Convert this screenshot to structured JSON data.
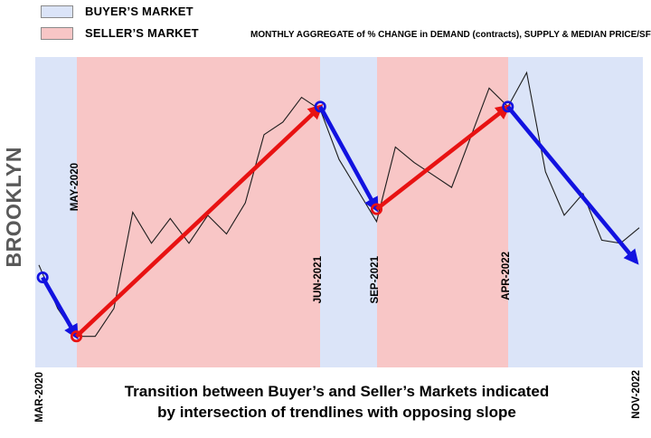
{
  "legend": {
    "items": [
      {
        "label": "BUYER’S MARKET",
        "market": "buyer",
        "color": "#dbe4f8"
      },
      {
        "label": "SELLER’S MARKET",
        "market": "seller",
        "color": "#f8c6c6"
      }
    ]
  },
  "subtitle": "MONTHLY AGGREGATE of % CHANGE in DEMAND (contracts), SUPPLY & MEDIAN PRICE/SF",
  "region_title": "BROOKLYN",
  "caption": {
    "line1": "Transition between Buyer’s and Seller’s Markets indicated",
    "line2": "by intersection of trendlines with opposing slope"
  },
  "chart_data": {
    "type": "line",
    "title": "Brooklyn buyer/seller market transitions",
    "x_axis": {
      "unit": "month",
      "n_points": 33,
      "start_label": "MAR-2020",
      "end_label": "NOV-2022"
    },
    "y_axis": {
      "label": "monthly aggregate of % change (normalized index, no visible axis)",
      "ylim": [
        0,
        100
      ],
      "ticks_visible": false
    },
    "grid": false,
    "legend_position": "top-left",
    "series": [
      {
        "name": "Monthly aggregate of % change in demand (contracts), supply & median price/SF",
        "color": "#1c1c1c",
        "values": [
          33,
          19,
          10,
          10,
          19,
          50,
          40,
          48,
          40,
          49,
          43,
          53,
          75,
          79,
          87,
          83,
          67,
          57,
          47,
          71,
          66,
          62,
          58,
          74,
          90,
          84,
          95,
          63,
          49,
          56,
          41,
          40,
          45
        ]
      }
    ],
    "market_colors": {
      "buyer": "#dbe4f8",
      "seller": "#f8c6c6"
    },
    "market_regions": [
      {
        "market": "buyer",
        "from_month": 0,
        "to_month": 2
      },
      {
        "market": "seller",
        "from_month": 2,
        "to_month": 15
      },
      {
        "market": "buyer",
        "from_month": 15,
        "to_month": 18
      },
      {
        "market": "seller",
        "from_month": 18,
        "to_month": 25
      },
      {
        "market": "buyer",
        "from_month": 25,
        "to_month": 32
      }
    ],
    "boundary_labels": [
      {
        "label": "MAY-2020",
        "month": 2
      },
      {
        "label": "JUN-2021",
        "month": 15
      },
      {
        "label": "SEP-2021",
        "month": 18
      },
      {
        "label": "APR-2022",
        "month": 25
      }
    ],
    "timeline": {
      "start": {
        "label": "MAR-2020",
        "month": 0
      },
      "end": {
        "label": "NOV-2022",
        "month": 32
      }
    },
    "trend_colors": {
      "buyer": "#1212e0",
      "seller": "#e81212"
    },
    "trendlines": [
      {
        "market": "buyer",
        "from": {
          "month": 0.2,
          "value": 29
        },
        "to": {
          "month": 2,
          "value": 10
        }
      },
      {
        "market": "seller",
        "from": {
          "month": 2,
          "value": 10
        },
        "to": {
          "month": 15,
          "value": 84
        }
      },
      {
        "market": "buyer",
        "from": {
          "month": 15,
          "value": 84
        },
        "to": {
          "month": 18,
          "value": 51
        }
      },
      {
        "market": "seller",
        "from": {
          "month": 18,
          "value": 51
        },
        "to": {
          "month": 25,
          "value": 84
        }
      },
      {
        "market": "buyer",
        "from": {
          "month": 25,
          "value": 84
        },
        "to": {
          "month": 31.85,
          "value": 34
        }
      }
    ]
  }
}
